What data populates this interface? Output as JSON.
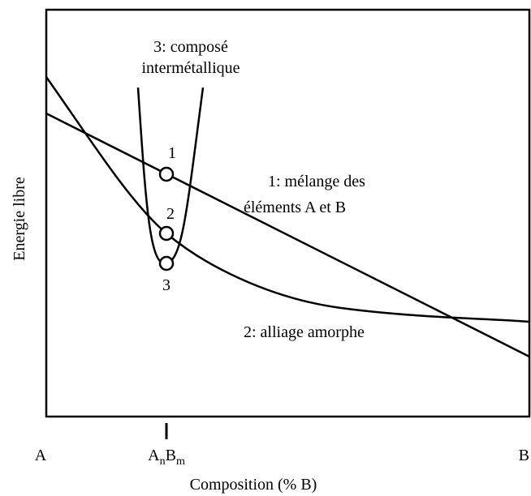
{
  "y_axis_label": "Energie libre",
  "x_axis_label": "Composition (% B)",
  "x_labels": {
    "left": "A",
    "compound": {
      "a": "A",
      "n": "n",
      "b": "B",
      "m": "m"
    },
    "right": "B"
  },
  "curve_labels": {
    "c3_line1": "3: composé",
    "c3_line2": "intermétallique",
    "c1_line1": "1: mélange des",
    "c1_line2": "éléments A et B",
    "c2": "2: alliage amorphe"
  },
  "point_labels": [
    "1",
    "2",
    "3"
  ]
}
